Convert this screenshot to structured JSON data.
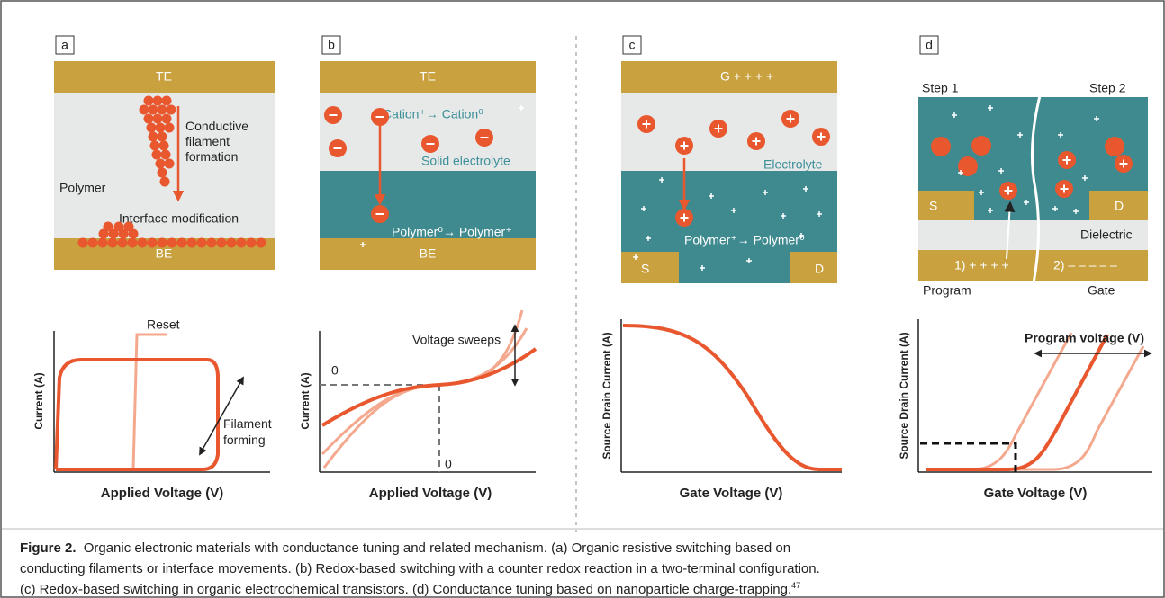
{
  "panels": {
    "a": {
      "label": "a",
      "top": "TE",
      "bottom": "BE",
      "layer": "Polymer",
      "filament": "Conductive filament formation",
      "interface": "Interface modification",
      "y_axis": "Current (A)",
      "x_axis": "Applied Voltage (V)",
      "reset": "Reset",
      "forming": "Filament forming"
    },
    "b": {
      "label": "b",
      "top": "TE",
      "bottom": "BE",
      "reaction_top": "Cation⁺→ Cation⁰",
      "electrolyte": "Solid electrolyte",
      "reaction_bottom": "Polymer⁰→ Polymer⁺",
      "y_axis": "Current (A)",
      "x_axis": "Applied Voltage (V)",
      "sweeps": "Voltage sweeps",
      "y_zero": "0",
      "x_zero": "0"
    },
    "c": {
      "label": "c",
      "gate": "G + + + +",
      "electrolyte": "Electrolyte",
      "reaction": "Polymer⁺→ Polymer⁰",
      "source": "S",
      "drain": "D",
      "y_axis": "Source Drain Current (A)",
      "x_axis": "Gate Voltage (V)"
    },
    "d": {
      "label": "d",
      "step1": "Step 1",
      "step2": "Step 2",
      "source": "S",
      "drain": "D",
      "dielectric": "Dielectric",
      "gate1": "1) + + + +",
      "gate2": "2) – – – – –",
      "program": "Program",
      "gate": "Gate",
      "y_axis": "Source Drain Current (A)",
      "x_axis": "Gate Voltage (V)",
      "program_voltage": "Program voltage (V)"
    }
  },
  "caption": {
    "label": "Figure 2.",
    "lines": [
      "Organic electronic materials with conductance tuning and related mechanism. (a) Organic resistive switching based on",
      "conducting filaments or interface movements. (b) Redox-based switching with a counter redox reaction in a two-terminal configuration.",
      "(c) Redox-based switching in organic electrochemical transistors. (d) Conductance tuning based on nanoparticle charge-trapping."
    ],
    "ref": "47"
  }
}
